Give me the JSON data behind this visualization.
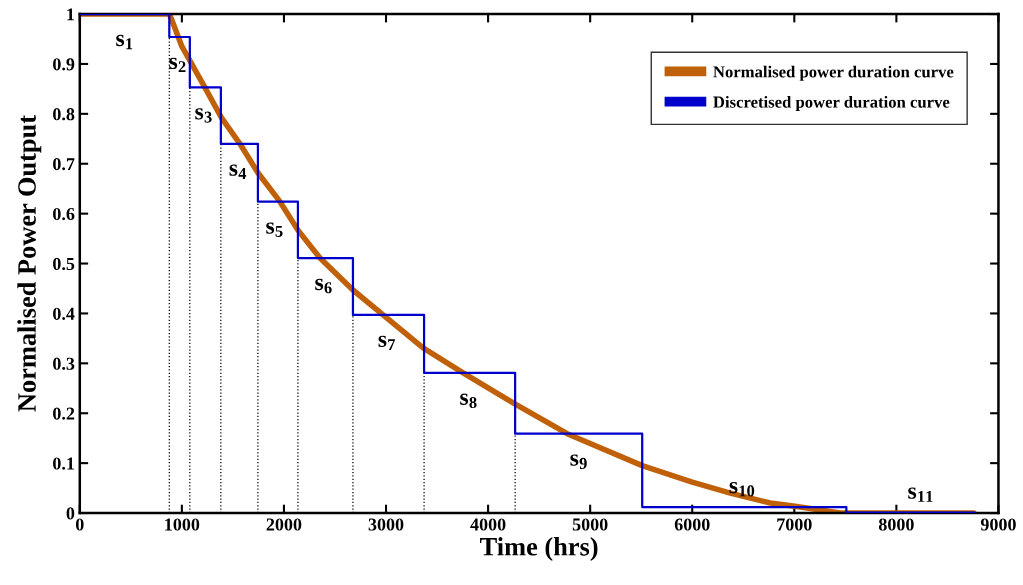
{
  "chart_data": {
    "type": "line",
    "xlabel": "Time (hrs)",
    "ylabel": "Normalised Power Output",
    "xlim": [
      0,
      9000
    ],
    "ylim": [
      0,
      1
    ],
    "xticks": [
      0,
      1000,
      2000,
      3000,
      4000,
      5000,
      6000,
      7000,
      8000,
      9000
    ],
    "yticks": [
      0,
      0.1,
      0.2,
      0.3,
      0.4,
      0.5,
      0.6,
      0.7,
      0.8,
      0.9,
      1
    ],
    "grid": false,
    "legend": "top right",
    "marker": "none",
    "line_style": "solid",
    "series": [
      {
        "name": "Normalised power duration curve",
        "color": "#c0610a",
        "x": [
          0,
          877,
          898,
          1000,
          1225,
          1389,
          1569,
          1745,
          1961,
          2137,
          2353,
          2676,
          2971,
          3363,
          3755,
          4245,
          4775,
          5510,
          6000,
          6373,
          6765,
          6990,
          7255,
          7451,
          8760
        ],
        "values": [
          1,
          1,
          0.99,
          0.935,
          0.853,
          0.792,
          0.74,
          0.682,
          0.624,
          0.567,
          0.511,
          0.447,
          0.397,
          0.331,
          0.281,
          0.221,
          0.159,
          0.095,
          0.062,
          0.04,
          0.02,
          0.014,
          0.006,
          0,
          0
        ]
      },
      {
        "name": "Discretised power duration curve",
        "color": "#0000cc",
        "type": "step",
        "x": [
          0,
          877,
          1078,
          1382,
          1745,
          2137,
          2676,
          3373,
          4265,
          5510,
          7510,
          8760
        ],
        "values": [
          1,
          0.954,
          0.853,
          0.74,
          0.624,
          0.511,
          0.397,
          0.281,
          0.159,
          0.012,
          0.001,
          0.001
        ]
      }
    ],
    "ref_lines": [
      {
        "axis": "x",
        "value": 877,
        "line_style": "dotted",
        "color": "#000000"
      },
      {
        "axis": "x",
        "value": 1078,
        "line_style": "dotted",
        "color": "#000000"
      },
      {
        "axis": "x",
        "value": 1382,
        "line_style": "dotted",
        "color": "#000000"
      },
      {
        "axis": "x",
        "value": 1745,
        "line_style": "dotted",
        "color": "#000000"
      },
      {
        "axis": "x",
        "value": 2137,
        "line_style": "dotted",
        "color": "#000000"
      },
      {
        "axis": "x",
        "value": 2676,
        "line_style": "dotted",
        "color": "#000000"
      },
      {
        "axis": "x",
        "value": 3373,
        "line_style": "dotted",
        "color": "#000000"
      },
      {
        "axis": "x",
        "value": 4265,
        "line_style": "dotted",
        "color": "#000000"
      }
    ],
    "annotations": [
      {
        "text": "s$_{1}$",
        "x": 440,
        "y": 1
      },
      {
        "text": "s$_{2}$",
        "x": 960,
        "y": 0.954
      },
      {
        "text": "s$_{3}$",
        "x": 1215,
        "y": 0.853
      },
      {
        "text": "s$_{4}$",
        "x": 1550,
        "y": 0.74
      },
      {
        "text": "s$_{5}$",
        "x": 1910,
        "y": 0.624
      },
      {
        "text": "s$_{6}$",
        "x": 2390,
        "y": 0.511
      },
      {
        "text": "s$_{7}$",
        "x": 3010,
        "y": 0.397
      },
      {
        "text": "s$_{8}$",
        "x": 3810,
        "y": 0.281
      },
      {
        "text": "s$_{9}$",
        "x": 4890,
        "y": 0.159
      },
      {
        "text": "s$_{10}$",
        "x": 6490,
        "y": 0.012
      },
      {
        "text": "s$_{11}$",
        "x": 8240,
        "y": 0.001
      }
    ]
  }
}
